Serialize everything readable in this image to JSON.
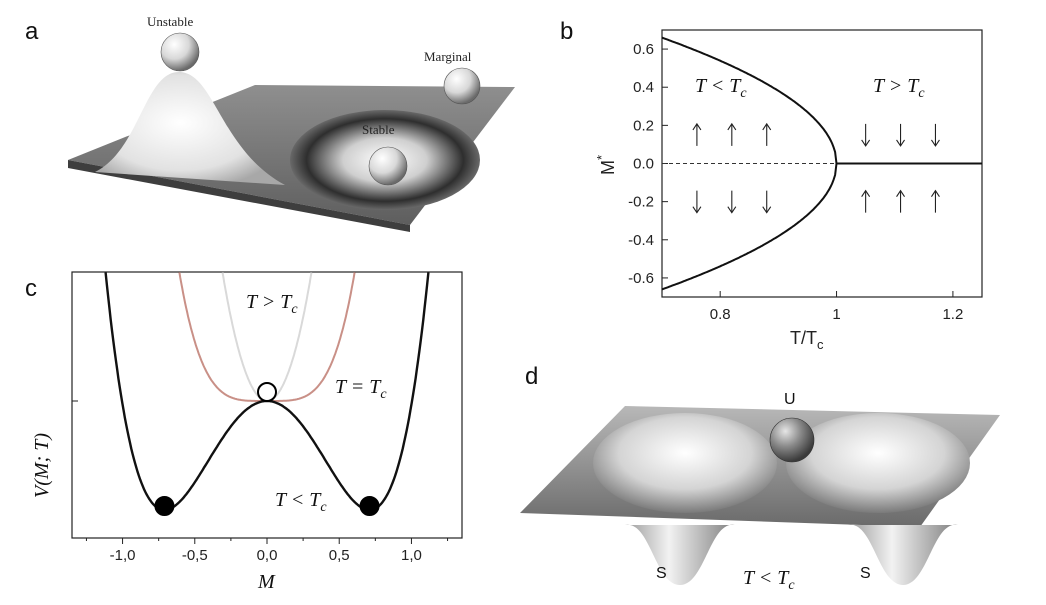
{
  "panels": {
    "a": {
      "letter": "a",
      "balls": [
        "Unstable",
        "Marginal",
        "Stable"
      ]
    },
    "b": {
      "letter": "b"
    },
    "c": {
      "letter": "c"
    },
    "d": {
      "letter": "d",
      "labels": {
        "unstable": "U",
        "stable_left": "S",
        "stable_right": "S"
      }
    }
  },
  "chart_data": [
    {
      "panel": "b",
      "type": "line",
      "xlabel": "T/T",
      "xlabel_sub": "c",
      "ylabel": "M",
      "ylabel_sup": "*",
      "xlim": [
        0.7,
        1.25
      ],
      "ylim": [
        -0.7,
        0.7
      ],
      "x_ticks": [
        "0.8",
        "1",
        "1.2"
      ],
      "y_ticks": [
        "0.6",
        "0.4",
        "0.2",
        "0.0",
        "-0.2",
        "-0.4",
        "-0.6"
      ],
      "annotations": [
        "T < T",
        "T > T"
      ],
      "annotation_sub": "c",
      "series": [
        {
          "x": [
            0.7,
            0.75,
            0.8,
            0.85,
            0.9,
            0.95,
            0.98,
            1.0
          ],
          "values": [
            0.66,
            0.63,
            0.58,
            0.51,
            0.42,
            0.29,
            0.18,
            0.0
          ]
        },
        {
          "x": [
            0.7,
            0.75,
            0.8,
            0.85,
            0.9,
            0.95,
            0.98,
            1.0
          ],
          "values": [
            -0.66,
            -0.63,
            -0.58,
            -0.51,
            -0.42,
            -0.29,
            -0.18,
            0.0
          ]
        },
        {
          "x": [
            0.7,
            1.0
          ],
          "values": [
            0.0,
            0.0
          ]
        },
        {
          "x": [
            1.0,
            1.25
          ],
          "values": [
            0.0,
            0.0
          ]
        }
      ],
      "arrows": {
        "low": {
          "x": [
            0.76,
            0.82,
            0.88
          ],
          "up_y": 0.15,
          "down_y": -0.2
        },
        "high": {
          "x": [
            1.05,
            1.11,
            1.17
          ],
          "down_y": 0.15,
          "up_y": -0.2
        }
      }
    },
    {
      "panel": "c",
      "type": "line",
      "xlabel": "M",
      "ylabel": "V(M; T)",
      "xlim": [
        -1.35,
        1.35
      ],
      "x_ticks": [
        "-1,0",
        "-0,5",
        "0,0",
        "0,5",
        "1,0"
      ],
      "annotations": [
        "T > T",
        "T = T",
        "T < T"
      ],
      "annotation_sub": "c",
      "series": [
        {
          "color": "#d9d9d9"
        },
        {
          "color": "#c99087"
        },
        {
          "color": "#111111"
        }
      ],
      "points": [
        {
          "x": 0.0,
          "fill": "open"
        },
        {
          "x": -0.71,
          "fill": "solid"
        },
        {
          "x": 0.71,
          "fill": "solid"
        }
      ]
    }
  ],
  "d_caption": "T < T",
  "d_caption_sub": "c"
}
